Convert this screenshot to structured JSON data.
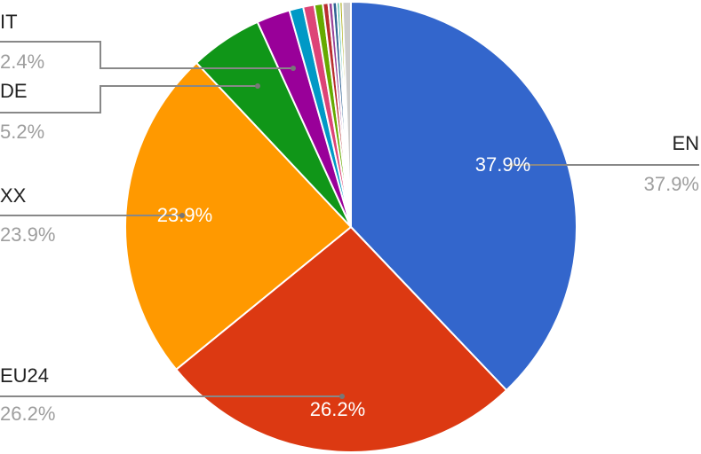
{
  "chart_data": {
    "type": "pie",
    "categories": [
      "EN",
      "EU24",
      "XX",
      "DE",
      "IT",
      null,
      null,
      null,
      null,
      null,
      null,
      null,
      null,
      null
    ],
    "values": [
      37.9,
      26.2,
      23.9,
      5.2,
      2.4,
      1.0,
      0.8,
      0.6,
      0.4,
      0.3,
      0.3,
      0.2,
      0.2,
      0.6
    ],
    "value_labels": [
      "37.9%",
      "26.2%",
      "23.9%",
      "5.2%",
      "2.4%",
      null,
      null,
      null,
      null,
      null,
      null,
      null,
      null,
      null
    ],
    "colors": [
      "#3366cc",
      "#dc3912",
      "#ff9900",
      "#109618",
      "#990099",
      "#0099c6",
      "#dd4477",
      "#66aa00",
      "#b82e2e",
      "#994499",
      "#316395",
      "#22aa99",
      "#aaaa11",
      "#cccccc"
    ]
  }
}
